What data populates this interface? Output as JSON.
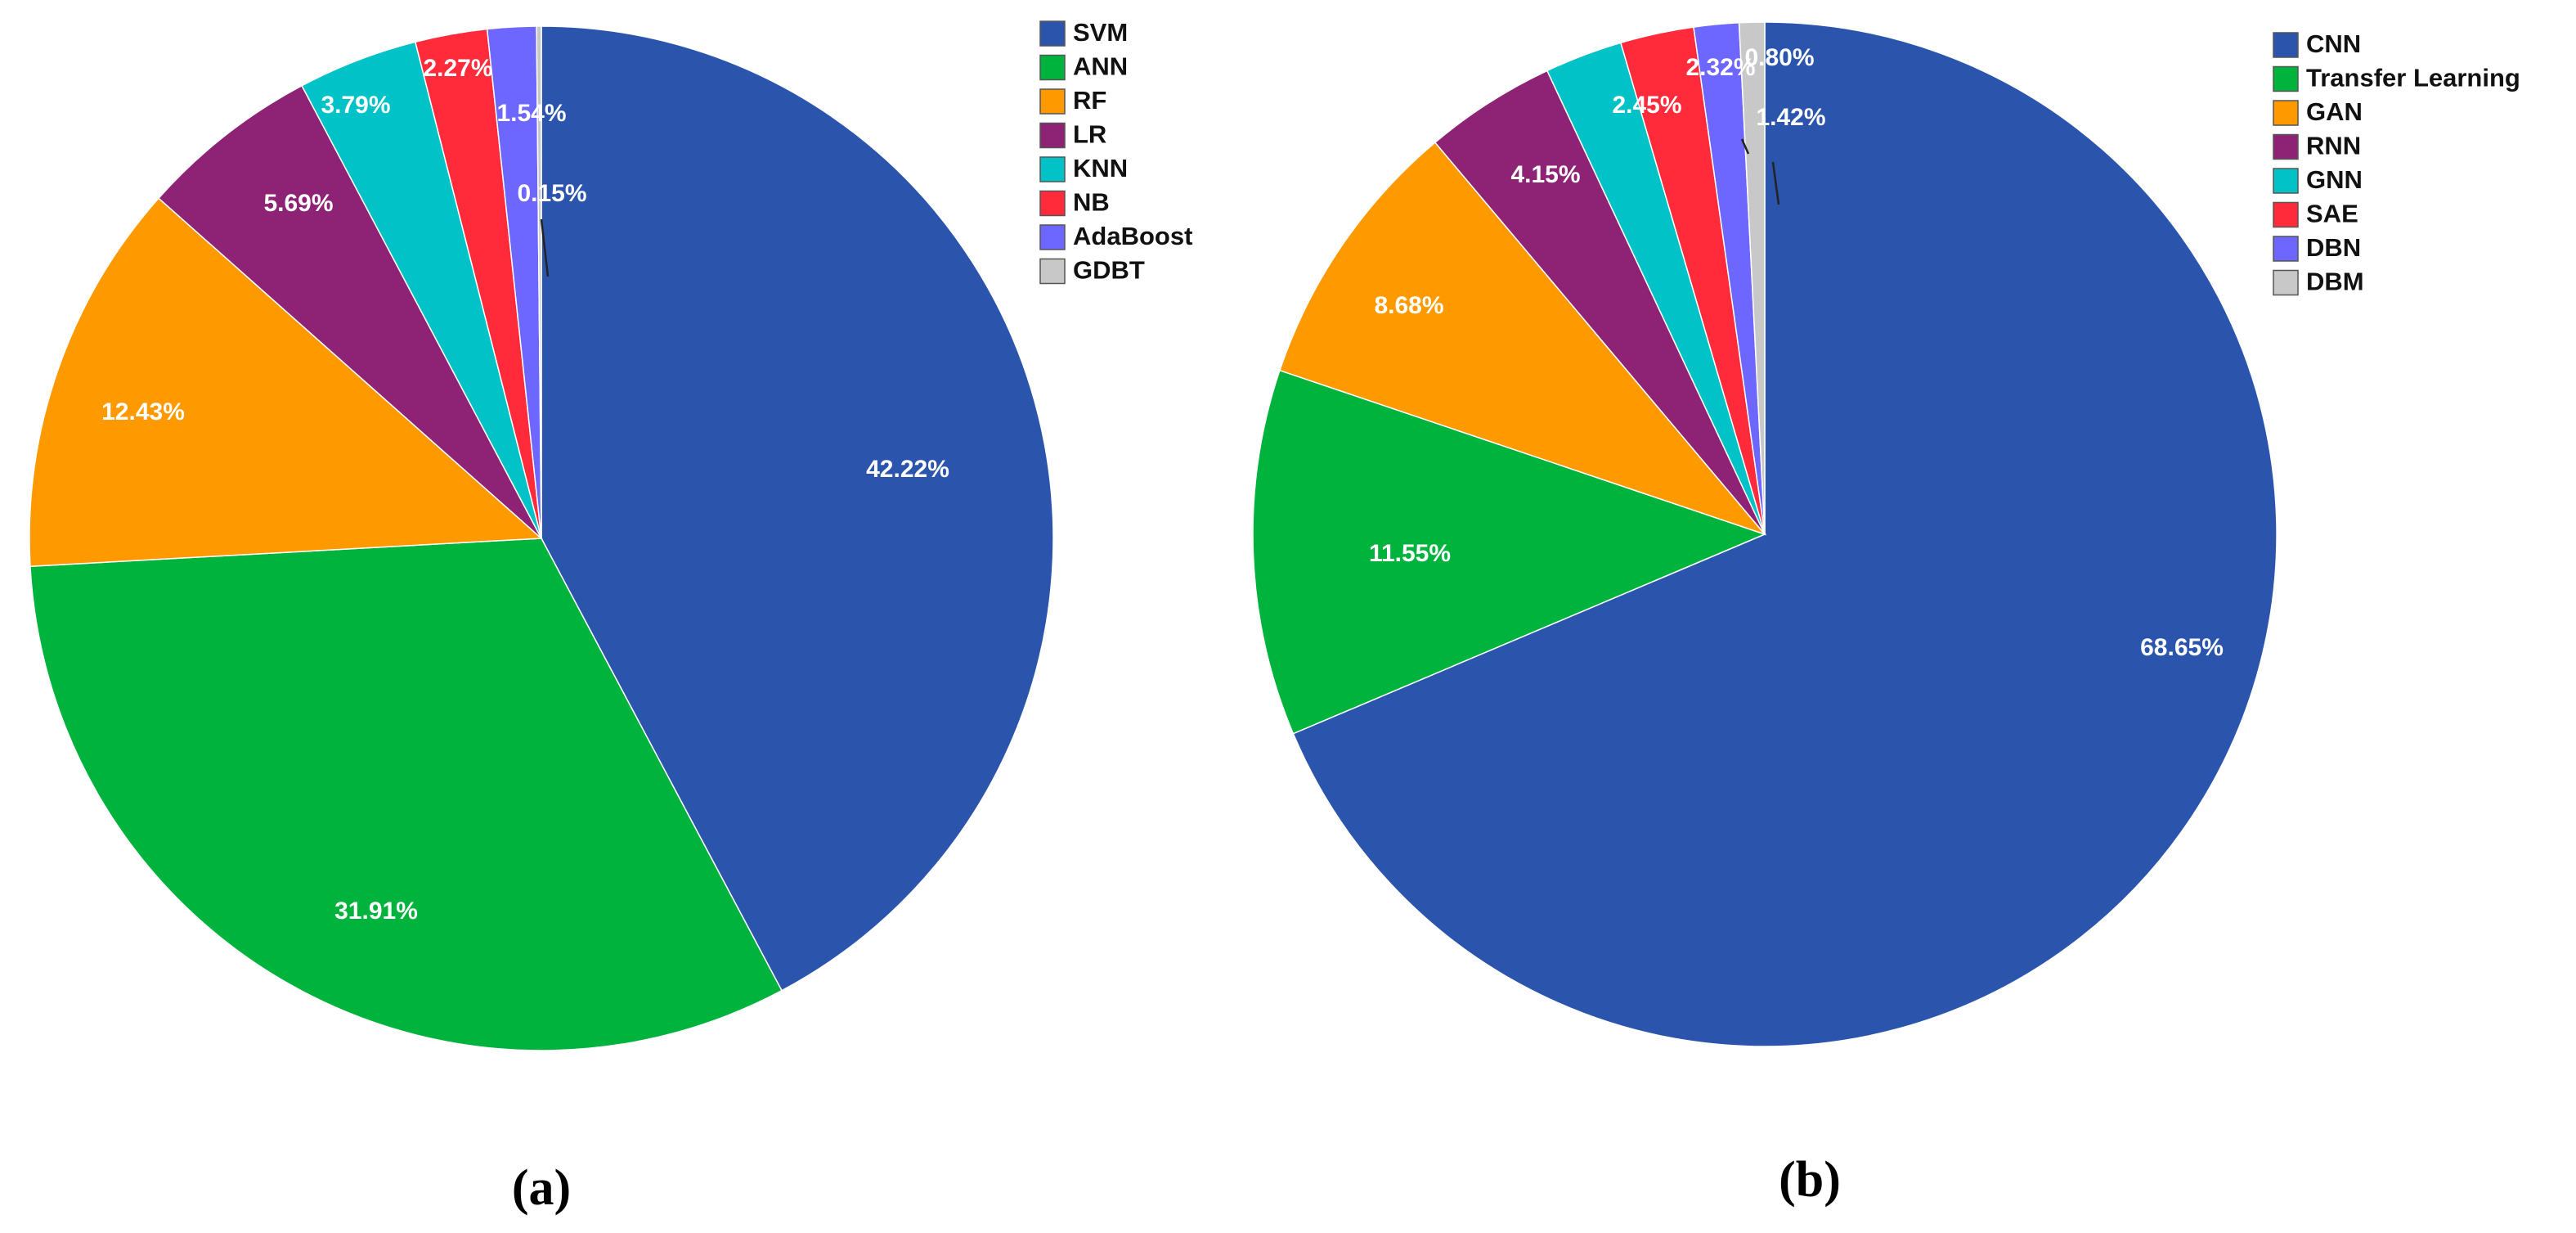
{
  "chart_data": [
    {
      "type": "pie",
      "panel_label": "(a)",
      "legend_position": "top-right",
      "slices": [
        {
          "label": "SVM",
          "value": 42.22,
          "display": "42.22%",
          "color": "#2b55ad"
        },
        {
          "label": "ANN",
          "value": 31.91,
          "display": "31.91%",
          "color": "#00b33c"
        },
        {
          "label": "RF",
          "value": 12.43,
          "display": "12.43%",
          "color": "#ff9900"
        },
        {
          "label": "LR",
          "value": 5.69,
          "display": "5.69%",
          "color": "#8e2376"
        },
        {
          "label": "KNN",
          "value": 3.79,
          "display": "3.79%",
          "color": "#00c2c7"
        },
        {
          "label": "NB",
          "value": 2.27,
          "display": "2.27%",
          "color": "#ff2b3a"
        },
        {
          "label": "AdaBoost",
          "value": 1.54,
          "display": "1.54%",
          "color": "#6d66ff"
        },
        {
          "label": "GDBT",
          "value": 0.15,
          "display": "0.15%",
          "color": "#c8c8c8"
        }
      ]
    },
    {
      "type": "pie",
      "panel_label": "(b)",
      "legend_position": "top-right",
      "slices": [
        {
          "label": "CNN",
          "value": 68.65,
          "display": "68.65%",
          "color": "#2b55ad"
        },
        {
          "label": "Transfer Learning",
          "value": 11.55,
          "display": "11.55%",
          "color": "#00b33c"
        },
        {
          "label": "GAN",
          "value": 8.68,
          "display": "8.68%",
          "color": "#ff9900"
        },
        {
          "label": "RNN",
          "value": 4.15,
          "display": "4.15%",
          "color": "#8e2376"
        },
        {
          "label": "GNN",
          "value": 2.45,
          "display": "2.45%",
          "color": "#00c2c7"
        },
        {
          "label": "SAE",
          "value": 2.32,
          "display": "2.32%",
          "color": "#ff2b3a"
        },
        {
          "label": "DBN",
          "value": 1.42,
          "display": "1.42%",
          "color": "#6d66ff"
        },
        {
          "label": "DBM",
          "value": 0.8,
          "display": "0.80%",
          "color": "#c8c8c8"
        }
      ]
    }
  ]
}
